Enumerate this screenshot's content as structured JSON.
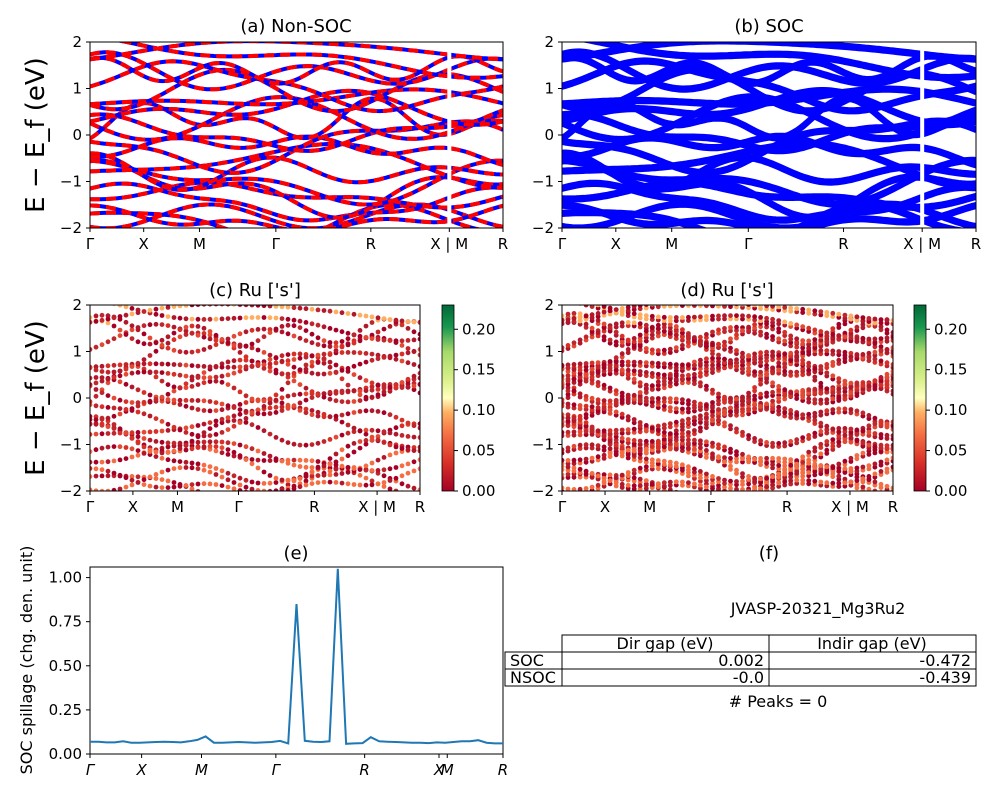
{
  "chart_data": [
    {
      "id": "a",
      "type": "line",
      "title": "(a) Non-SOC",
      "ylabel": "E − E_f (eV)",
      "ylim": [
        -2,
        2
      ],
      "yticks": [
        "2",
        "1",
        "0",
        "−1",
        "−2"
      ],
      "xticks": [
        "Γ",
        "X",
        "M",
        "Γ",
        "R",
        "X | M",
        "R"
      ],
      "series_colors": [
        "#ff0000",
        "#0000ff"
      ],
      "style": "red/blue dashed overlapping spin bands"
    },
    {
      "id": "b",
      "type": "line",
      "title": "(b) SOC",
      "ylim": [
        -2,
        2
      ],
      "yticks": [
        "2",
        "1",
        "0",
        "−1",
        "−2"
      ],
      "xticks": [
        "Γ",
        "X",
        "M",
        "Γ",
        "R",
        "X | M",
        "R"
      ],
      "series_colors": [
        "#0000ff"
      ]
    },
    {
      "id": "c",
      "type": "scatter",
      "title": "(c)  Ru ['s']",
      "ylabel": "E − E_f (eV)",
      "ylim": [
        -2,
        2
      ],
      "yticks": [
        "2",
        "1",
        "0",
        "−1",
        "−2"
      ],
      "xticks": [
        "Γ",
        "X",
        "M",
        "Γ",
        "R",
        "X | M",
        "R"
      ],
      "colorbar": {
        "range": [
          0,
          0.23
        ],
        "ticks": [
          "0.20",
          "0.15",
          "0.10",
          "0.05",
          "0.00"
        ],
        "colormap": "RdYlGn"
      }
    },
    {
      "id": "d",
      "type": "scatter",
      "title": "(d) Ru ['s']",
      "ylim": [
        -2,
        2
      ],
      "yticks": [
        "2",
        "1",
        "0",
        "−1",
        "−2"
      ],
      "xticks": [
        "Γ",
        "X",
        "M",
        "Γ",
        "R",
        "X | M",
        "R"
      ],
      "colorbar": {
        "range": [
          0,
          0.23
        ],
        "ticks": [
          "0.20",
          "0.15",
          "0.10",
          "0.05",
          "0.00"
        ],
        "colormap": "RdYlGn"
      }
    },
    {
      "id": "e",
      "type": "line",
      "title": "(e)",
      "ylabel": "SOC spillage (chg. den. unit)",
      "ylim": [
        0,
        1.06
      ],
      "yticks": [
        "1.00",
        "0.75",
        "0.50",
        "0.25",
        "0.00"
      ],
      "xticks": [
        "Γ",
        "X",
        "M",
        "Γ",
        "R",
        "X",
        "M",
        "R"
      ],
      "series_colors": [
        "#1f77b4"
      ],
      "x": [
        0,
        2,
        4,
        6,
        8,
        10,
        12,
        14,
        16,
        18,
        20,
        22,
        24,
        26,
        28,
        30,
        32,
        34,
        36,
        38,
        40,
        42,
        44,
        46,
        48,
        50,
        52,
        54,
        56,
        58,
        60,
        62,
        64,
        66,
        68,
        70,
        72,
        74,
        76,
        78,
        80,
        82,
        84,
        86,
        88,
        90,
        92,
        94,
        96,
        98,
        100
      ],
      "values": [
        0.07,
        0.07,
        0.066,
        0.066,
        0.072,
        0.064,
        0.064,
        0.066,
        0.068,
        0.07,
        0.068,
        0.066,
        0.072,
        0.08,
        0.1,
        0.064,
        0.064,
        0.066,
        0.068,
        0.066,
        0.064,
        0.066,
        0.068,
        0.074,
        0.06,
        0.85,
        0.075,
        0.07,
        0.068,
        0.072,
        1.05,
        0.058,
        0.06,
        0.062,
        0.095,
        0.072,
        0.07,
        0.068,
        0.066,
        0.064,
        0.064,
        0.062,
        0.066,
        0.064,
        0.068,
        0.072,
        0.072,
        0.078,
        0.064,
        0.06,
        0.06
      ]
    }
  ],
  "panel_f": {
    "title": "(f)",
    "material": "JVASP-20321_Mg3Ru2",
    "table": {
      "headers": [
        "Dir gap (eV)",
        "Indir gap (eV)"
      ],
      "rows": [
        {
          "label": "SOC",
          "dir": "0.002",
          "indir": "-0.472"
        },
        {
          "label": "NSOC",
          "dir": "-0.0",
          "indir": "-0.439"
        }
      ]
    },
    "peaks": "# Peaks = 0"
  }
}
